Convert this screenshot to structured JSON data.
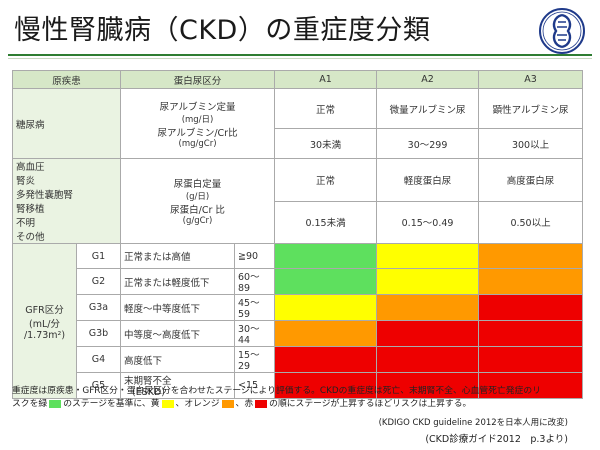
{
  "title": "慢性腎臓病（CKD）の重症度分類",
  "header": {
    "disease": "原疾患",
    "proteinuria_category": "蛋白尿区分",
    "a1": "A1",
    "a2": "A2",
    "a3": "A3"
  },
  "diabetes": {
    "label": "糖尿病",
    "measure_line1": "尿アルブミン定量",
    "measure_line2": "(mg/日)",
    "measure_line3": "尿アルブミン/Cr比",
    "measure_line4": "(mg/gCr)",
    "a1_label": "正常",
    "a2_label": "微量アルブミン尿",
    "a3_label": "顕性アルブミン尿",
    "a1_value": "30未満",
    "a2_value": "30〜299",
    "a3_value": "300以上"
  },
  "other": {
    "label_lines": [
      "高血圧",
      "腎炎",
      "多発性嚢胞腎",
      "腎移植",
      "不明",
      "その他"
    ],
    "measure_line1": "尿蛋白定量",
    "measure_line2": "(g/日)",
    "measure_line3": "尿蛋白/Cr 比",
    "measure_line4": "(g/gCr)",
    "a1_label": "正常",
    "a2_label": "軽度蛋白尿",
    "a3_label": "高度蛋白尿",
    "a1_value": "0.15未満",
    "a2_value": "0.15〜0.49",
    "a3_value": "0.50以上"
  },
  "gfr": {
    "label_line1": "GFR区分",
    "label_line2": "(mL/分",
    "label_line3": "/1.73m²)",
    "rows": [
      {
        "code": "G1",
        "desc": "正常または高値",
        "range": "≧90",
        "colors": [
          "green",
          "yellow",
          "orange"
        ]
      },
      {
        "code": "G2",
        "desc": "正常または軽度低下",
        "range": "60〜89",
        "colors": [
          "green",
          "yellow",
          "orange"
        ]
      },
      {
        "code": "G3a",
        "desc": "軽度〜中等度低下",
        "range": "45〜59",
        "colors": [
          "yellow",
          "orange",
          "red"
        ]
      },
      {
        "code": "G3b",
        "desc": "中等度〜高度低下",
        "range": "30〜44",
        "colors": [
          "orange",
          "red",
          "red"
        ]
      },
      {
        "code": "G4",
        "desc": "高度低下",
        "range": "15〜29",
        "colors": [
          "red",
          "red",
          "red"
        ]
      },
      {
        "code": "G5",
        "desc_line1": "末期腎不全",
        "desc_line2": "(ESKD)",
        "range": "<15",
        "colors": [
          "red",
          "red",
          "red"
        ]
      }
    ]
  },
  "colors": {
    "green": "#5ee05e",
    "yellow": "#ffff00",
    "orange": "#ff9900",
    "red": "#ee0000",
    "header_bg": "#d6e7c7",
    "rule": "#2e7d32"
  },
  "note": {
    "line1": "重症度は原疾患・GFR区分・蛋白尿区分を合わせたステージにより評価する。CKDの重症度は死亡、末期腎不全、心血管死亡発症のリ",
    "line2_a": "スクを緑",
    "line2_b": "のステージを基準に、黄",
    "line2_c": "、オレンジ",
    "line2_d": "、赤",
    "line2_e": "の順にステージが上昇するほどリスクは上昇する。"
  },
  "source_1": "(KDIGO CKD guideline 2012を日本人用に改変)",
  "source_2": "(CKD診療ガイド2012　p.3より)",
  "logo_icon": "kidney-emblem-icon"
}
